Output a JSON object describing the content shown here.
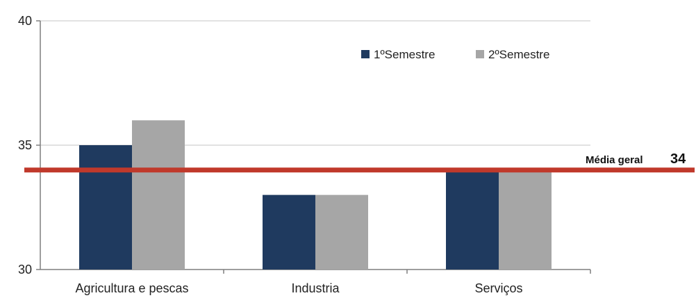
{
  "chart_data": {
    "type": "bar",
    "categories": [
      "Agricultura e pescas",
      "Industria",
      "Serviços"
    ],
    "series": [
      {
        "name": "1ºSemestre",
        "values": [
          35,
          33,
          34
        ],
        "color": "#1f3a5f"
      },
      {
        "name": "2ºSemestre",
        "values": [
          36,
          33,
          34
        ],
        "color": "#a6a6a6"
      }
    ],
    "ylim": [
      30,
      40
    ],
    "yticks": [
      30,
      35,
      40
    ],
    "grid": true,
    "legend_position": "top-right",
    "reference_line": {
      "label": "Média geral",
      "value_text": "34",
      "value": 34,
      "color": "#c0392b"
    }
  }
}
